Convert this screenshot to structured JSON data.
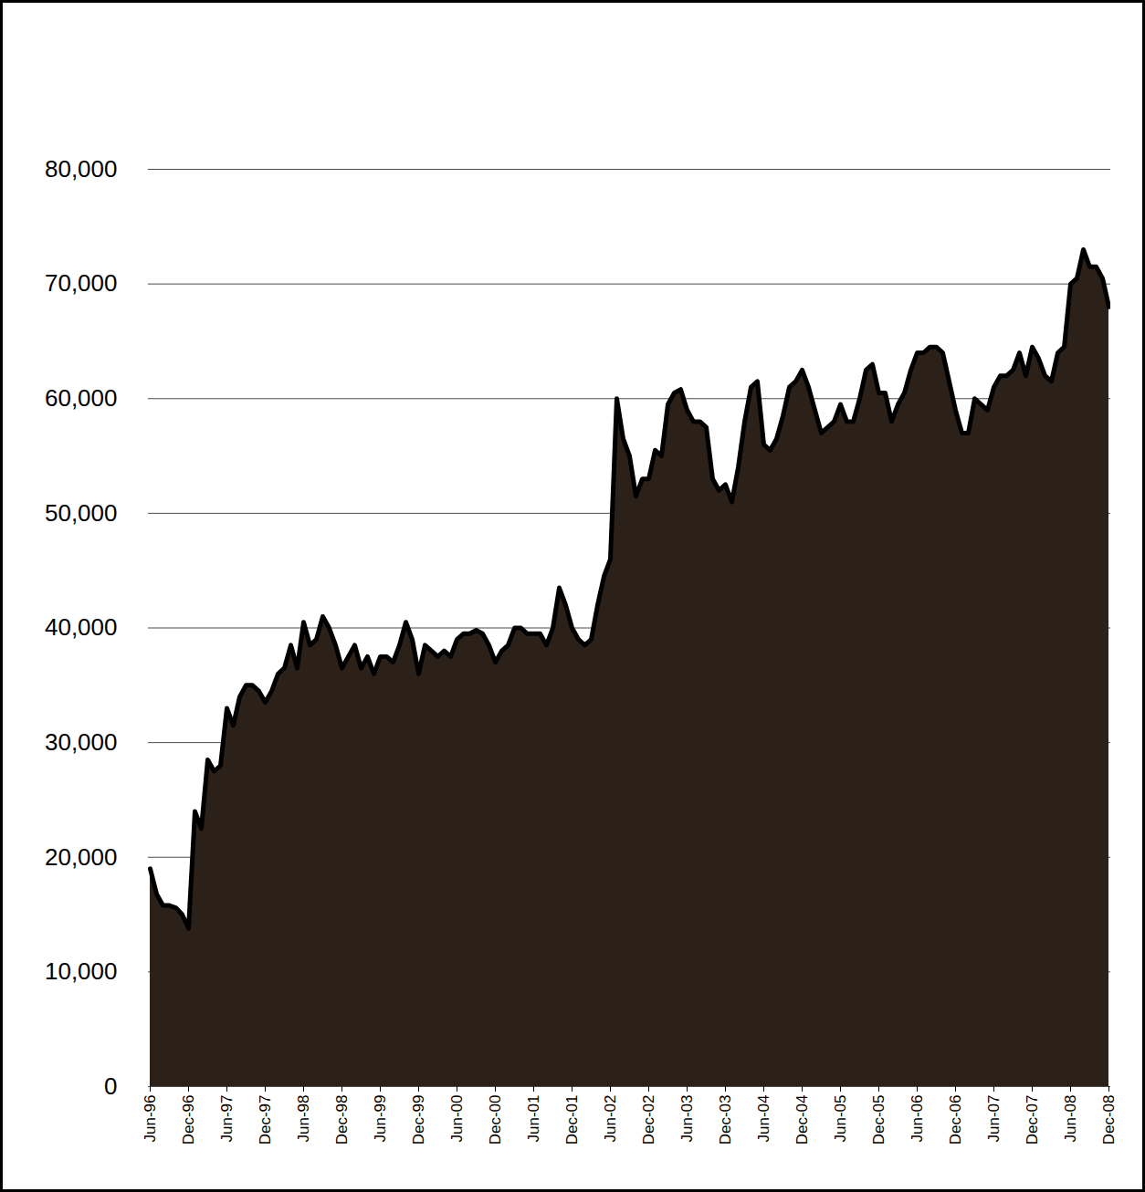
{
  "chart_data": {
    "type": "area",
    "categories": [
      "Jun-96",
      null,
      null,
      null,
      null,
      null,
      "Dec-96",
      null,
      null,
      null,
      null,
      null,
      "Jun-97",
      null,
      null,
      null,
      null,
      null,
      "Dec-97",
      null,
      null,
      null,
      null,
      null,
      "Jun-98",
      null,
      null,
      null,
      null,
      null,
      "Dec-98",
      null,
      null,
      null,
      null,
      null,
      "Jun-99",
      null,
      null,
      null,
      null,
      null,
      "Dec-99",
      null,
      null,
      null,
      null,
      null,
      "Jun-00",
      null,
      null,
      null,
      null,
      null,
      "Dec-00",
      null,
      null,
      null,
      null,
      null,
      "Jun-01",
      null,
      null,
      null,
      null,
      null,
      "Dec-01",
      null,
      null,
      null,
      null,
      null,
      "Jun-02",
      null,
      null,
      null,
      null,
      null,
      "Dec-02",
      null,
      null,
      null,
      null,
      null,
      "Jun-03",
      null,
      null,
      null,
      null,
      null,
      "Dec-03",
      null,
      null,
      null,
      null,
      null,
      "Jun-04",
      null,
      null,
      null,
      null,
      null,
      "Dec-04",
      null,
      null,
      null,
      null,
      null,
      "Jun-05",
      null,
      null,
      null,
      null,
      null,
      "Dec-05",
      null,
      null,
      null,
      null,
      null,
      "Jun-06",
      null,
      null,
      null,
      null,
      null,
      "Dec-06",
      null,
      null,
      null,
      null,
      null,
      "Jun-07",
      null,
      null,
      null,
      null,
      null,
      "Dec-07",
      null,
      null,
      null,
      null,
      null,
      "Jun-08",
      null,
      null,
      null,
      null,
      null,
      "Dec-08"
    ],
    "values": [
      19000,
      16800,
      15800,
      15800,
      15600,
      15000,
      13800,
      24000,
      22500,
      28500,
      27500,
      28000,
      33000,
      31500,
      34000,
      35000,
      35000,
      34500,
      33500,
      34500,
      36000,
      36500,
      38500,
      36500,
      40500,
      38500,
      39000,
      41000,
      40000,
      38500,
      36500,
      37500,
      38500,
      36500,
      37500,
      36000,
      37500,
      37500,
      37000,
      38500,
      40500,
      39000,
      36000,
      38500,
      38000,
      37500,
      38000,
      37500,
      39000,
      39500,
      39500,
      39800,
      39500,
      38500,
      37000,
      38000,
      38500,
      40000,
      40000,
      39500,
      39500,
      39500,
      38500,
      40000,
      43500,
      42000,
      40000,
      39000,
      38500,
      39000,
      42000,
      44500,
      46000,
      60000,
      56500,
      55000,
      51500,
      53000,
      53000,
      55500,
      55000,
      59500,
      60500,
      60800,
      59000,
      58000,
      58000,
      57500,
      53000,
      52000,
      52500,
      51000,
      54000,
      58000,
      61000,
      61500,
      56000,
      55500,
      56500,
      58500,
      61000,
      61500,
      62500,
      61000,
      59000,
      57000,
      57500,
      58000,
      59500,
      58000,
      58000,
      60000,
      62500,
      63000,
      60500,
      60500,
      58000,
      59500,
      60500,
      62500,
      64000,
      64000,
      64500,
      64500,
      64000,
      61500,
      59000,
      57000,
      57000,
      60000,
      59500,
      59000,
      61000,
      62000,
      62000,
      62500,
      64000,
      62000,
      64500,
      63500,
      62000,
      61500,
      64000,
      64500,
      70000,
      70500,
      73000,
      71500,
      71500,
      70500,
      68000
    ],
    "color": "#000000",
    "ylim": [
      0,
      80000
    ],
    "yticks": [
      0,
      {
        "value": 10000,
        "label": "10,000"
      },
      {
        "value": 20000,
        "label": "20,000"
      },
      {
        "value": 30000,
        "label": "30,000"
      },
      {
        "value": 40000,
        "label": "40,000"
      },
      {
        "value": 50000,
        "label": "50,000"
      },
      {
        "value": 60000,
        "label": "60,000"
      },
      {
        "value": 70000,
        "label": "70,000"
      },
      {
        "value": 80000,
        "label": "80,000"
      }
    ],
    "grid": true
  }
}
